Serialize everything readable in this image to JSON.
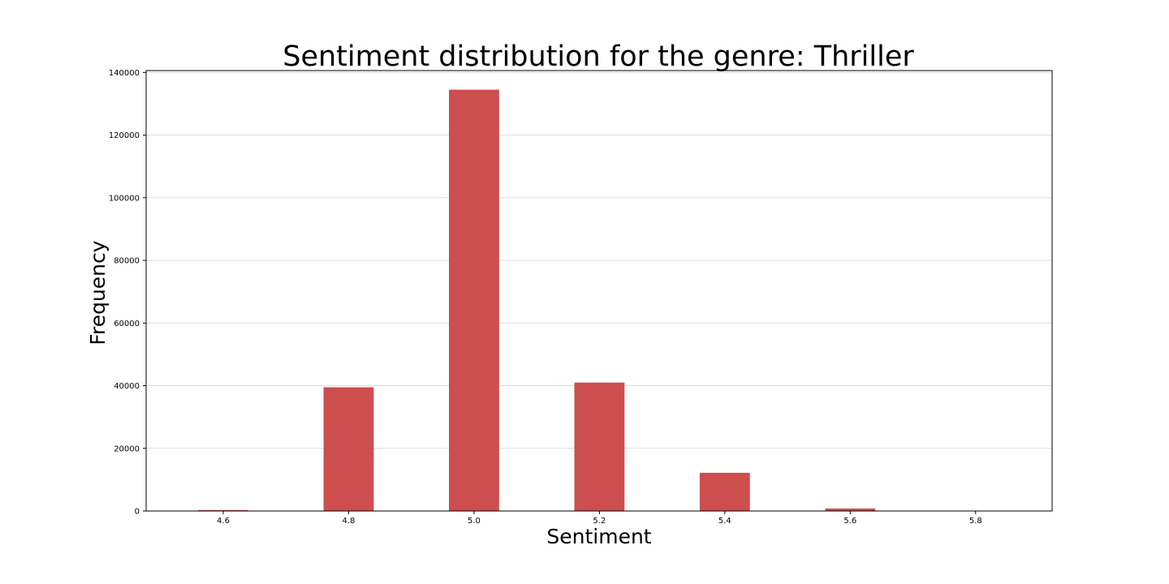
{
  "chart_data": {
    "type": "bar",
    "title": "Sentiment distribution for the genre: Thriller",
    "xlabel": "Sentiment",
    "ylabel": "Frequency",
    "bins": [
      {
        "x": 4.6,
        "value": 300
      },
      {
        "x": 4.8,
        "value": 39500
      },
      {
        "x": 5.0,
        "value": 134500
      },
      {
        "x": 5.2,
        "value": 41000
      },
      {
        "x": 5.4,
        "value": 12200
      },
      {
        "x": 5.6,
        "value": 800
      },
      {
        "x": 5.8,
        "value": 0
      }
    ],
    "x_ticks": [
      "4.6",
      "4.8",
      "5.0",
      "5.2",
      "5.4",
      "5.6",
      "5.8"
    ],
    "y_ticks": [
      0,
      20000,
      40000,
      60000,
      80000,
      100000,
      120000,
      140000
    ],
    "xlim": [
      4.477,
      5.922
    ],
    "ylim": [
      0,
      140600
    ],
    "grid": "horizontal",
    "bar_color": "#cd4e4e"
  }
}
